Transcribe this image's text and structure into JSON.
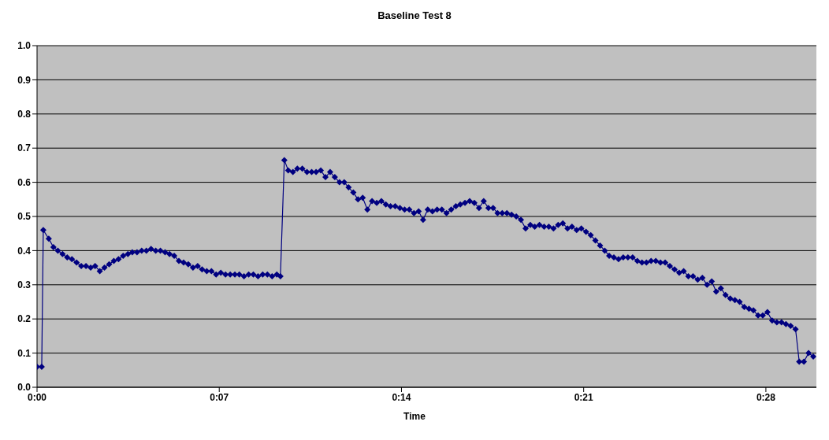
{
  "chart_data": {
    "type": "line",
    "title": "Baseline Test 8",
    "xlabel": "Time",
    "x": [
      0,
      0.18,
      0.24,
      0.45,
      0.63,
      0.8,
      0.98,
      1.16,
      1.34,
      1.52,
      1.7,
      1.88,
      2.06,
      2.23,
      2.41,
      2.59,
      2.77,
      2.95,
      3.13,
      3.31,
      3.49,
      3.66,
      3.84,
      4.02,
      4.2,
      4.38,
      4.56,
      4.74,
      4.92,
      5.09,
      5.27,
      5.45,
      5.63,
      5.81,
      5.99,
      6.17,
      6.34,
      6.52,
      6.7,
      6.88,
      7.06,
      7.24,
      7.42,
      7.6,
      7.77,
      7.95,
      8.13,
      8.31,
      8.49,
      8.67,
      8.85,
      9.03,
      9.21,
      9.35,
      9.5,
      9.65,
      9.83,
      10.0,
      10.19,
      10.37,
      10.55,
      10.72,
      10.9,
      11.08,
      11.26,
      11.44,
      11.62,
      11.8,
      11.97,
      12.15,
      12.33,
      12.51,
      12.69,
      12.87,
      13.05,
      13.23,
      13.4,
      13.58,
      13.76,
      13.94,
      14.12,
      14.3,
      14.48,
      14.66,
      14.83,
      15.01,
      15.19,
      15.37,
      15.55,
      15.73,
      15.91,
      16.09,
      16.26,
      16.44,
      16.62,
      16.8,
      16.98,
      17.16,
      17.34,
      17.52,
      17.69,
      17.87,
      18.05,
      18.23,
      18.41,
      18.59,
      18.77,
      18.95,
      19.12,
      19.3,
      19.48,
      19.66,
      19.84,
      20.02,
      20.2,
      20.38,
      20.55,
      20.73,
      20.91,
      21.09,
      21.27,
      21.45,
      21.63,
      21.81,
      21.98,
      22.16,
      22.34,
      22.52,
      22.7,
      22.88,
      23.06,
      23.24,
      23.41,
      23.59,
      23.77,
      23.95,
      24.13,
      24.31,
      24.49,
      24.67,
      24.84,
      25.02,
      25.2,
      25.38,
      25.56,
      25.74,
      25.92,
      26.09,
      26.27,
      26.45,
      26.63,
      26.81,
      26.99,
      27.17,
      27.35,
      27.52,
      27.7,
      27.88,
      28.06,
      28.24,
      28.42,
      28.6,
      28.77,
      28.95,
      29.14,
      29.28,
      29.46,
      29.64,
      29.82
    ],
    "series": [
      {
        "color": "#000080",
        "values": [
          0.06,
          0.06,
          0.46,
          0.435,
          0.41,
          0.4,
          0.39,
          0.38,
          0.375,
          0.365,
          0.355,
          0.355,
          0.35,
          0.355,
          0.34,
          0.35,
          0.36,
          0.37,
          0.375,
          0.385,
          0.39,
          0.395,
          0.395,
          0.4,
          0.4,
          0.405,
          0.4,
          0.4,
          0.395,
          0.39,
          0.385,
          0.37,
          0.365,
          0.36,
          0.35,
          0.355,
          0.345,
          0.34,
          0.34,
          0.33,
          0.335,
          0.33,
          0.33,
          0.33,
          0.33,
          0.325,
          0.33,
          0.33,
          0.325,
          0.33,
          0.33,
          0.325,
          0.33,
          0.325,
          0.665,
          0.635,
          0.63,
          0.64,
          0.64,
          0.63,
          0.63,
          0.63,
          0.635,
          0.615,
          0.63,
          0.615,
          0.6,
          0.6,
          0.585,
          0.57,
          0.55,
          0.555,
          0.52,
          0.545,
          0.54,
          0.545,
          0.535,
          0.53,
          0.53,
          0.525,
          0.52,
          0.52,
          0.51,
          0.515,
          0.49,
          0.52,
          0.515,
          0.52,
          0.52,
          0.51,
          0.52,
          0.53,
          0.535,
          0.54,
          0.545,
          0.54,
          0.525,
          0.545,
          0.525,
          0.525,
          0.51,
          0.51,
          0.51,
          0.505,
          0.5,
          0.49,
          0.465,
          0.475,
          0.47,
          0.475,
          0.47,
          0.47,
          0.465,
          0.475,
          0.48,
          0.465,
          0.47,
          0.46,
          0.465,
          0.455,
          0.445,
          0.43,
          0.415,
          0.4,
          0.385,
          0.38,
          0.375,
          0.38,
          0.38,
          0.38,
          0.37,
          0.365,
          0.365,
          0.37,
          0.37,
          0.365,
          0.365,
          0.355,
          0.345,
          0.335,
          0.34,
          0.325,
          0.325,
          0.315,
          0.32,
          0.3,
          0.31,
          0.28,
          0.29,
          0.27,
          0.26,
          0.255,
          0.25,
          0.235,
          0.23,
          0.225,
          0.21,
          0.21,
          0.22,
          0.195,
          0.19,
          0.19,
          0.185,
          0.18,
          0.17,
          0.075,
          0.075,
          0.1,
          0.09
        ]
      }
    ],
    "xlim": [
      0,
      29.94
    ],
    "xticks": [
      {
        "value": 0,
        "label": "0:00"
      },
      {
        "value": 7,
        "label": "0:07"
      },
      {
        "value": 14,
        "label": "0:14"
      },
      {
        "value": 21,
        "label": "0:21"
      },
      {
        "value": 28,
        "label": "0:28"
      }
    ],
    "ylim": [
      0,
      1
    ],
    "yticks": [
      {
        "value": 0,
        "label": "0.0"
      },
      {
        "value": 0.1,
        "label": "0.1"
      },
      {
        "value": 0.2,
        "label": "0.2"
      },
      {
        "value": 0.3,
        "label": "0.3"
      },
      {
        "value": 0.4,
        "label": "0.4"
      },
      {
        "value": 0.5,
        "label": "0.5"
      },
      {
        "value": 0.6,
        "label": "0.6"
      },
      {
        "value": 0.7,
        "label": "0.7"
      },
      {
        "value": 0.8,
        "label": "0.8"
      },
      {
        "value": 0.9,
        "label": "0.9"
      },
      {
        "value": 1,
        "label": "1.0"
      }
    ],
    "grid": "y",
    "marker": "diamond",
    "line_style": "solid",
    "legend": false
  }
}
